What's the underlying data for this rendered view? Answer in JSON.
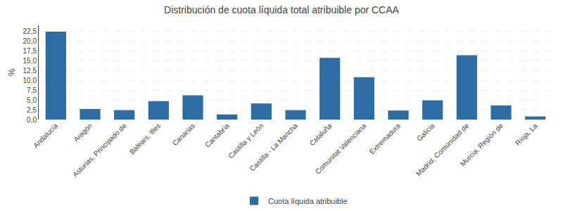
{
  "chart_data": {
    "type": "bar",
    "title": "Distribución de cuota líquida total atribuible por CCAA",
    "categories": [
      "Andalucía",
      "Aragón",
      "Asturias, Principado de",
      "Balears, Illes",
      "Canarias",
      "Cantabria",
      "Castilla y León",
      "Castilla - La Mancha",
      "Cataluña",
      "Comunitat Valenciana",
      "Extremadura",
      "Galicia",
      "Madrid, Comunidad de",
      "Murcia, Región de",
      "Rioja, La"
    ],
    "series": [
      {
        "name": "Cuota líquida atribuible",
        "color": "#2E6DA4",
        "values": [
          22.4,
          2.7,
          2.4,
          4.7,
          6.2,
          1.3,
          4.1,
          2.4,
          15.7,
          10.8,
          2.3,
          4.9,
          16.4,
          3.6,
          0.8
        ]
      }
    ],
    "ylabel": "%",
    "ylim": [
      0,
      24
    ],
    "yticks": [
      {
        "value": 0.0,
        "label": "0,0"
      },
      {
        "value": 2.5,
        "label": "2,5"
      },
      {
        "value": 5.0,
        "label": "5,0"
      },
      {
        "value": 7.5,
        "label": "7,5"
      },
      {
        "value": 10.0,
        "label": "10,0"
      },
      {
        "value": 12.5,
        "label": "12,5"
      },
      {
        "value": 15.0,
        "label": "15,0"
      },
      {
        "value": 17.5,
        "label": "17,5"
      },
      {
        "value": 20.0,
        "label": "20,0"
      },
      {
        "value": 22.5,
        "label": "22,5"
      }
    ],
    "grid": true,
    "legend": "bottom"
  }
}
